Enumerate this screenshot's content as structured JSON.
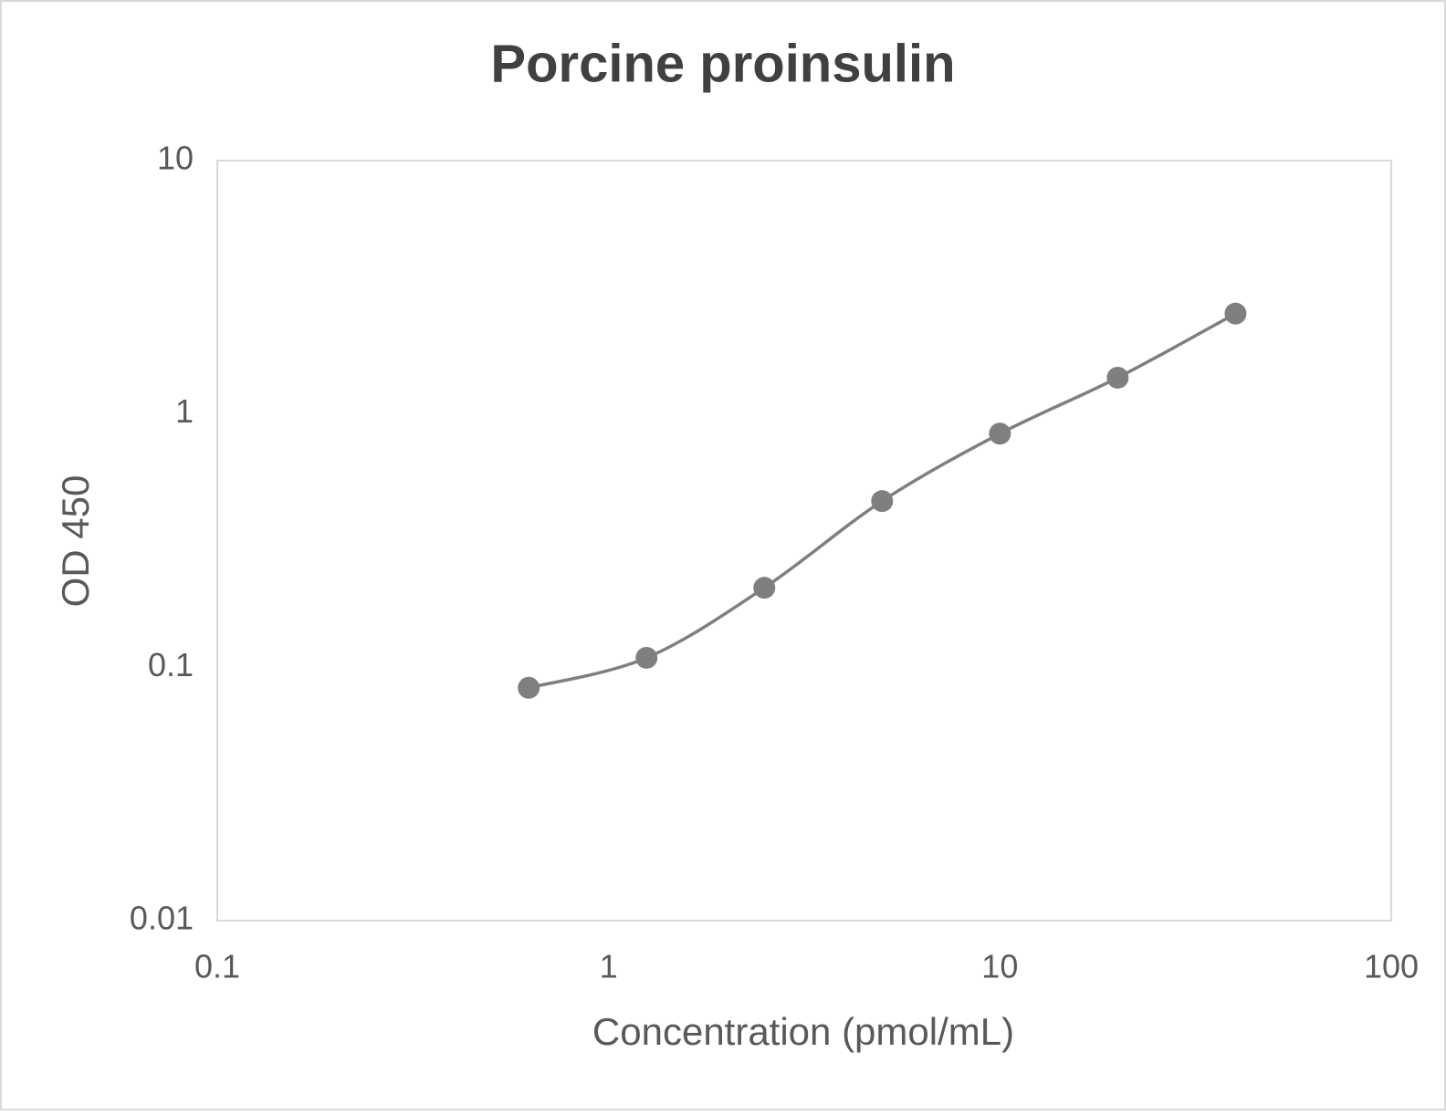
{
  "chart_data": {
    "type": "scatter",
    "title": "Porcine proinsulin",
    "x_label": "Concentration (pmol/mL)",
    "y_label": "OD 450",
    "x": [
      0.625,
      1.25,
      2.5,
      5,
      10,
      20,
      40
    ],
    "series": [
      {
        "color": "#7f7f7f",
        "values": [
          0.083,
          0.109,
          0.206,
          0.453,
          0.836,
          1.39,
          2.49
        ]
      }
    ],
    "xlim": [
      0.1,
      100
    ],
    "ylim": [
      0.01,
      10
    ],
    "xticks": [
      0.1,
      1,
      10,
      100
    ],
    "yticks": [
      0.01,
      0.1,
      1,
      10
    ],
    "xlog": true,
    "ylog": true,
    "smooth": true
  }
}
